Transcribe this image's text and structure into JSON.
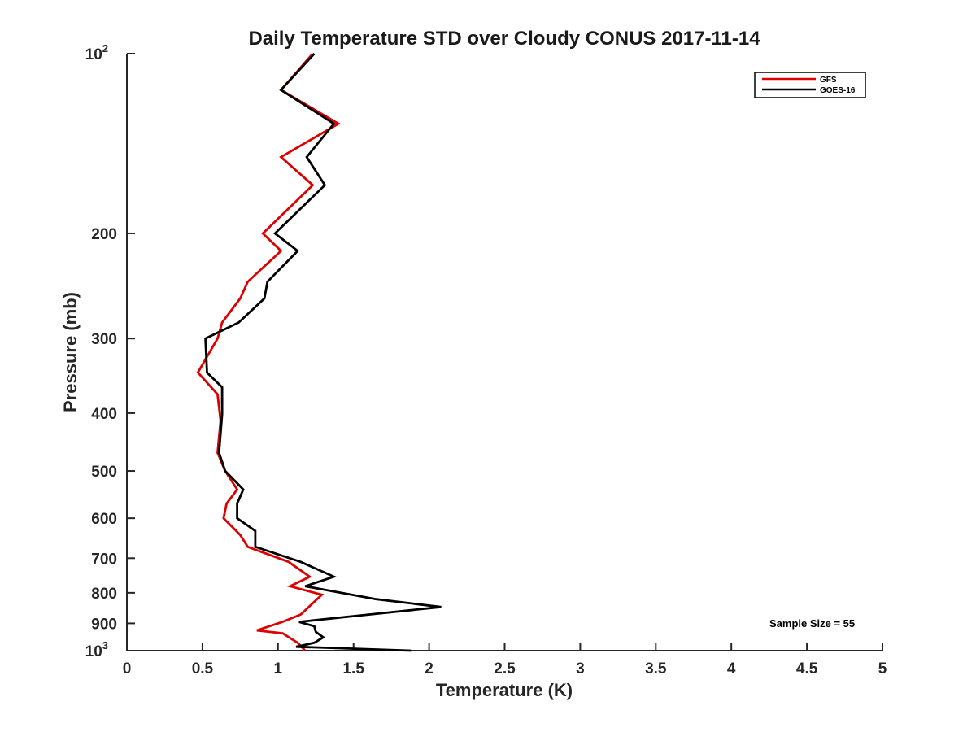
{
  "chart_data": {
    "type": "line",
    "title": "Daily Temperature STD over Cloudy CONUS 2017-11-14",
    "xlabel": "Temperature (K)",
    "ylabel": "Pressure (mb)",
    "xlim": [
      0,
      5
    ],
    "ylim": [
      100,
      1000
    ],
    "y_scale": "log",
    "y_reversed": true,
    "grid": false,
    "legend_position": "top-right",
    "x_ticks": [
      "0",
      "0.5",
      "1",
      "1.5",
      "2",
      "2.5",
      "3",
      "3.5",
      "4",
      "4.5",
      "5"
    ],
    "y_ticks": [
      {
        "value": 100,
        "label": "10",
        "sup": "2"
      },
      {
        "value": 200,
        "label": "200",
        "sup": ""
      },
      {
        "value": 300,
        "label": "300",
        "sup": ""
      },
      {
        "value": 400,
        "label": "400",
        "sup": ""
      },
      {
        "value": 500,
        "label": "500",
        "sup": ""
      },
      {
        "value": 600,
        "label": "600",
        "sup": ""
      },
      {
        "value": 700,
        "label": "700",
        "sup": ""
      },
      {
        "value": 800,
        "label": "800",
        "sup": ""
      },
      {
        "value": 900,
        "label": "900",
        "sup": ""
      },
      {
        "value": 1000,
        "label": "10",
        "sup": "3"
      }
    ],
    "annotation": "Sample Size = 55",
    "series": [
      {
        "name": "GFS",
        "color": "#dd0000",
        "points": [
          [
            1.23,
            100
          ],
          [
            1.02,
            115
          ],
          [
            1.4,
            131
          ],
          [
            1.02,
            149
          ],
          [
            1.23,
            166
          ],
          [
            0.9,
            200
          ],
          [
            1.02,
            214
          ],
          [
            0.8,
            241
          ],
          [
            0.75,
            257
          ],
          [
            0.63,
            282
          ],
          [
            0.6,
            300
          ],
          [
            0.47,
            342
          ],
          [
            0.6,
            372
          ],
          [
            0.62,
            412
          ],
          [
            0.6,
            466
          ],
          [
            0.65,
            500
          ],
          [
            0.73,
            537
          ],
          [
            0.66,
            567
          ],
          [
            0.64,
            600
          ],
          [
            0.75,
            640
          ],
          [
            0.8,
            670
          ],
          [
            1.07,
            710
          ],
          [
            1.21,
            752
          ],
          [
            1.08,
            780
          ],
          [
            1.29,
            806
          ],
          [
            1.15,
            870
          ],
          [
            1.03,
            895
          ],
          [
            0.86,
            925
          ],
          [
            1.03,
            935
          ],
          [
            1.13,
            970
          ],
          [
            1.18,
            1000
          ]
        ]
      },
      {
        "name": "GOES-16",
        "color": "#000000",
        "points": [
          [
            1.24,
            100
          ],
          [
            1.02,
            115
          ],
          [
            1.37,
            131
          ],
          [
            1.19,
            149
          ],
          [
            1.31,
            166
          ],
          [
            0.98,
            200
          ],
          [
            1.13,
            214
          ],
          [
            0.93,
            241
          ],
          [
            0.91,
            257
          ],
          [
            0.74,
            282
          ],
          [
            0.52,
            300
          ],
          [
            0.53,
            342
          ],
          [
            0.63,
            362
          ],
          [
            0.63,
            402
          ],
          [
            0.61,
            466
          ],
          [
            0.65,
            500
          ],
          [
            0.77,
            537
          ],
          [
            0.73,
            567
          ],
          [
            0.73,
            600
          ],
          [
            0.85,
            630
          ],
          [
            0.85,
            670
          ],
          [
            1.15,
            710
          ],
          [
            1.37,
            752
          ],
          [
            1.18,
            780
          ],
          [
            1.65,
            820
          ],
          [
            2.08,
            845
          ],
          [
            1.6,
            870
          ],
          [
            1.14,
            895
          ],
          [
            1.24,
            910
          ],
          [
            1.25,
            930
          ],
          [
            1.3,
            950
          ],
          [
            1.24,
            970
          ],
          [
            1.12,
            985
          ],
          [
            1.88,
            1000
          ]
        ]
      }
    ]
  }
}
